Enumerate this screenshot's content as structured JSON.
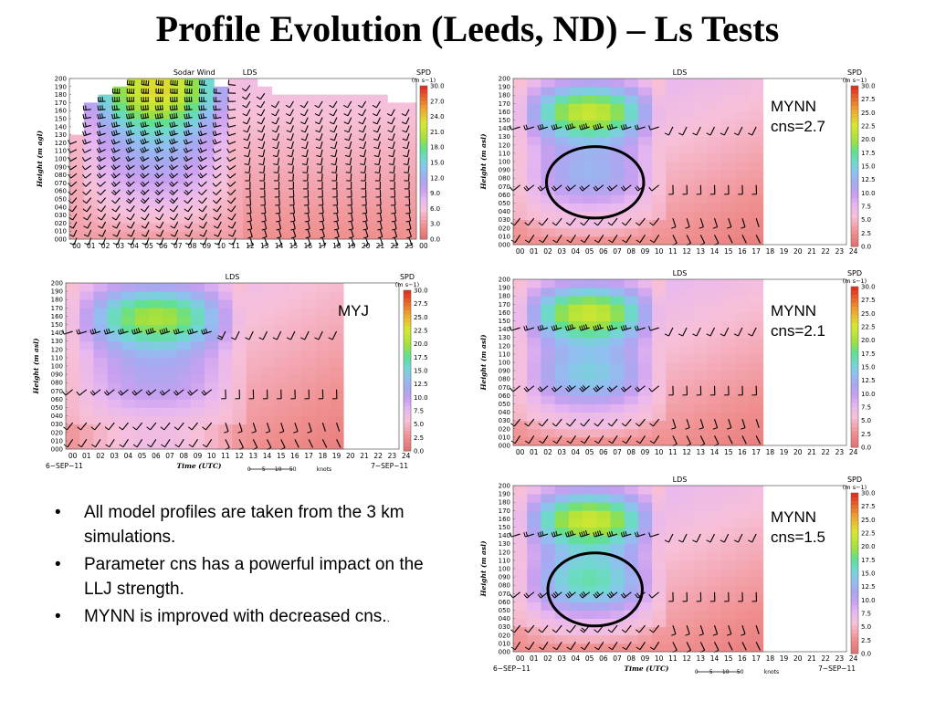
{
  "slide": {
    "title": "Profile Evolution (Leeds, ND) – Ls Tests",
    "bullets": [
      "All model profiles are taken from the 3 km simulations.",
      "Parameter cns has a powerful impact on the LLJ strength.",
      "MYNN is improved with decreased cns."
    ],
    "bullet_trailing_dot": "."
  },
  "panels": [
    {
      "id": "obs",
      "header_left": "Sodar Wind",
      "header_right": "LDS",
      "ylabel": "Height (m agl)",
      "label": "",
      "date_left": "",
      "date_right": "",
      "xlabel": "",
      "show_knots": false
    },
    {
      "id": "mynn27",
      "header_left": "",
      "header_right": "LDS",
      "ylabel": "Height (m asl)",
      "label": "MYNN\ncns=2.7",
      "date_left": "",
      "date_right": "",
      "xlabel": "",
      "show_knots": false
    },
    {
      "id": "myj",
      "header_left": "",
      "header_right": "LDS",
      "ylabel": "Height (m asl)",
      "label": "MYJ",
      "date_left": "6−SEP−11",
      "date_right": "7−SEP−11",
      "xlabel": "Time (UTC)",
      "show_knots": true
    },
    {
      "id": "mynn21",
      "header_left": "",
      "header_right": "LDS",
      "ylabel": "Height (m asl)",
      "label": "MYNN\ncns=2.1",
      "date_left": "",
      "date_right": "",
      "xlabel": "",
      "show_knots": false
    },
    {
      "id": "mynn15",
      "header_left": "",
      "header_right": "LDS",
      "ylabel": "Height (m asl)",
      "label": "MYNN\ncns=1.5",
      "date_left": "6−SEP−11",
      "date_right": "7−SEP−11",
      "xlabel": "Time (UTC)",
      "show_knots": true
    }
  ],
  "axes": {
    "y_ticks": [
      "000",
      "010",
      "020",
      "030",
      "040",
      "050",
      "060",
      "070",
      "080",
      "090",
      "100",
      "110",
      "120",
      "130",
      "140",
      "150",
      "160",
      "170",
      "180",
      "190",
      "200"
    ],
    "x_ticks": [
      "00",
      "01",
      "02",
      "03",
      "04",
      "05",
      "06",
      "07",
      "08",
      "09",
      "10",
      "11",
      "12",
      "13",
      "14",
      "15",
      "16",
      "17",
      "18",
      "19",
      "20",
      "21",
      "22",
      "23",
      "24"
    ],
    "obs_x_ticks": [
      "00",
      "01",
      "02",
      "03",
      "04",
      "05",
      "06",
      "07",
      "08",
      "09",
      "10",
      "11",
      "12",
      "13",
      "14",
      "15",
      "16",
      "17",
      "18",
      "19",
      "20",
      "21",
      "22",
      "23",
      "00"
    ]
  },
  "colorbar": {
    "title": "SPD",
    "unit": "(m s−1)",
    "obs_ticks": [
      "0.0",
      "3.0",
      "6.0",
      "9.0",
      "12.0",
      "15.0",
      "18.0",
      "21.0",
      "24.0",
      "27.0",
      "30.0"
    ],
    "model_ticks": [
      "0.0",
      "2.5",
      "5.0",
      "7.5",
      "10.0",
      "12.5",
      "15.0",
      "17.5",
      "20.0",
      "22.5",
      "25.0",
      "27.5",
      "30.0"
    ]
  },
  "knots_legend": {
    "marks": [
      "0",
      "5",
      "10",
      "50"
    ],
    "unit": "knots"
  },
  "colors": {
    "slow": "#e57a7a",
    "mid": "#a8a0e8",
    "fast": "#8ee03a",
    "ellipse": "#000000"
  }
}
